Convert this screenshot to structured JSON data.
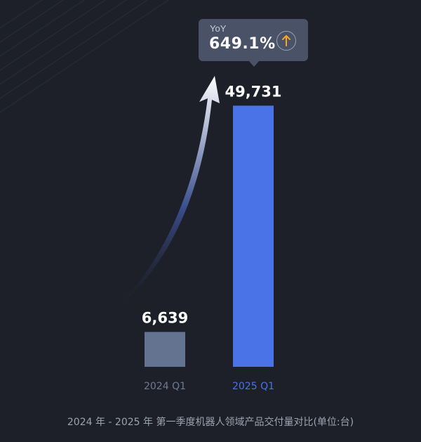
{
  "yoy": {
    "label": "YoY",
    "value": "649.1%",
    "icon": "arrow-up-icon",
    "icon_color": "#f5a623"
  },
  "chart_data": {
    "type": "bar",
    "categories": [
      "2024 Q1",
      "2025 Q1"
    ],
    "values": [
      6639,
      49731
    ],
    "value_labels": [
      "6,639",
      "49,731"
    ],
    "colors": [
      "#64738f",
      "#4a73e8"
    ],
    "category_label_colors": [
      "#6f7a92",
      "#4a73e8"
    ],
    "ylim": [
      0,
      55000
    ],
    "grid": false,
    "title": "2024 年 - 2025 年 第一季度机器人领域产品交付量对比(单位:台)"
  },
  "caption": "2024 年 - 2025 年 第一季度机器人领域产品交付量对比(单位:台)"
}
